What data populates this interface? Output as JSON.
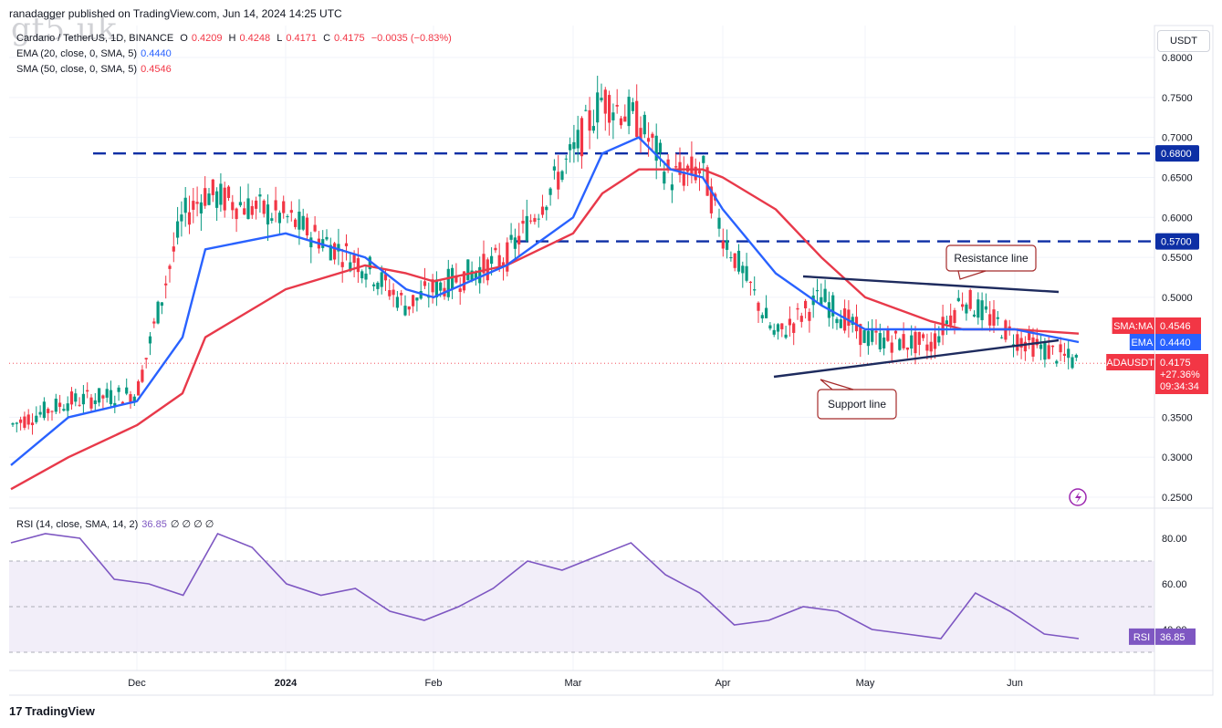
{
  "header": {
    "publisher": "ranadagger published on TradingView.com, Jun 14, 2024 14:25 UTC",
    "watermark": "gt5.uk"
  },
  "legend": {
    "symbol": "Cardano / TetherUS, 1D, BINANCE",
    "o_label": "O",
    "o_value": "0.4209",
    "h_label": "H",
    "h_value": "0.4248",
    "l_label": "L",
    "l_value": "0.4171",
    "c_label": "C",
    "c_value": "0.4175",
    "change": "−0.0035 (−0.83%)",
    "ema_label": "EMA (20, close, 0, SMA, 5)",
    "ema_value": "0.4440",
    "sma_label": "SMA (50, close, 0, SMA, 5)",
    "sma_value": "0.4546",
    "rsi_label": "RSI (14, close, SMA, 14, 2)",
    "rsi_value": "36.85",
    "rsi_extra": "∅ ∅ ∅ ∅"
  },
  "currency_button": "USDT",
  "footer": {
    "brand": "TradingView",
    "logo_mark": "17"
  },
  "colors": {
    "up": "#089981",
    "down": "#f23645",
    "ema": "#2962ff",
    "sma": "#e8394a",
    "level": "#0d2fa5",
    "trend": "#1e2b5e",
    "rsi": "#7e57c2",
    "rsi_band": "#ede7f6"
  },
  "chart_data": [
    {
      "type": "line",
      "title": "Cardano / TetherUS, 1D, BINANCE",
      "x_ticks": [
        "Dec",
        "2024",
        "Feb",
        "Mar",
        "Apr",
        "May",
        "Jun"
      ],
      "y_ticks": [
        "0.8000",
        "0.7500",
        "0.7000",
        "0.6500",
        "0.6000",
        "0.5500",
        "0.5000",
        "0.3500",
        "0.3000",
        "0.2500"
      ],
      "ylim": [
        0.22,
        0.81
      ],
      "price_badges": [
        {
          "label": "SMA:MA",
          "value": "0.4546",
          "y": 0.4546,
          "color": "#f23645"
        },
        {
          "label": "EMA",
          "value": "0.4440",
          "y": 0.444,
          "color": "#2962ff"
        },
        {
          "label": "ADAUSDT",
          "value": "0.4175",
          "extra1": "+27.36%",
          "extra2": "09:34:34",
          "y": 0.4175,
          "color": "#f23645"
        }
      ],
      "level_lines": [
        {
          "value": 0.68,
          "label": "0.6800"
        },
        {
          "value": 0.57,
          "label": "0.5700"
        }
      ],
      "annotations": [
        {
          "text": "Resistance line"
        },
        {
          "text": "Support line"
        }
      ],
      "series": [
        {
          "name": "ADAUSDT",
          "x_date": [
            "Nov 1",
            "Nov 15",
            "Dec 1",
            "Dec 10",
            "Dec 15",
            "Dec 31",
            "Jan 15",
            "Jan 25",
            "Feb 1",
            "Feb 15",
            "Feb 28",
            "Mar 5",
            "Mar 14",
            "Mar 20",
            "Mar 28",
            "Apr 5",
            "Apr 12",
            "Apr 22",
            "May 1",
            "May 15",
            "May 23",
            "Jun 1",
            "Jun 14"
          ],
          "values": [
            0.34,
            0.37,
            0.38,
            0.6,
            0.63,
            0.6,
            0.54,
            0.49,
            0.51,
            0.55,
            0.68,
            0.75,
            0.72,
            0.65,
            0.66,
            0.58,
            0.45,
            0.5,
            0.45,
            0.44,
            0.5,
            0.45,
            0.4175
          ]
        },
        {
          "name": "EMA",
          "values": [
            0.29,
            0.35,
            0.37,
            0.45,
            0.56,
            0.58,
            0.55,
            0.51,
            0.5,
            0.54,
            0.6,
            0.68,
            0.7,
            0.66,
            0.65,
            0.61,
            0.53,
            0.49,
            0.46,
            0.46,
            0.46,
            0.46,
            0.444
          ]
        },
        {
          "name": "SMA",
          "values": [
            0.26,
            0.3,
            0.34,
            0.38,
            0.45,
            0.51,
            0.54,
            0.53,
            0.52,
            0.54,
            0.58,
            0.63,
            0.66,
            0.66,
            0.66,
            0.65,
            0.61,
            0.55,
            0.5,
            0.47,
            0.46,
            0.46,
            0.4546
          ]
        }
      ]
    },
    {
      "type": "line",
      "title": "RSI (14, close, SMA, 14, 2)",
      "y_ticks": [
        "80.00",
        "60.00",
        "40.00"
      ],
      "ylim": [
        20,
        90
      ],
      "band": [
        30,
        70
      ],
      "badge": {
        "label": "RSI",
        "value": "36.85"
      },
      "series": [
        {
          "name": "RSI",
          "values": [
            78,
            82,
            80,
            62,
            60,
            55,
            82,
            76,
            60,
            55,
            58,
            48,
            44,
            50,
            58,
            70,
            66,
            72,
            78,
            64,
            56,
            42,
            44,
            50,
            48,
            40,
            38,
            36,
            56,
            48,
            38,
            36
          ]
        }
      ]
    }
  ]
}
